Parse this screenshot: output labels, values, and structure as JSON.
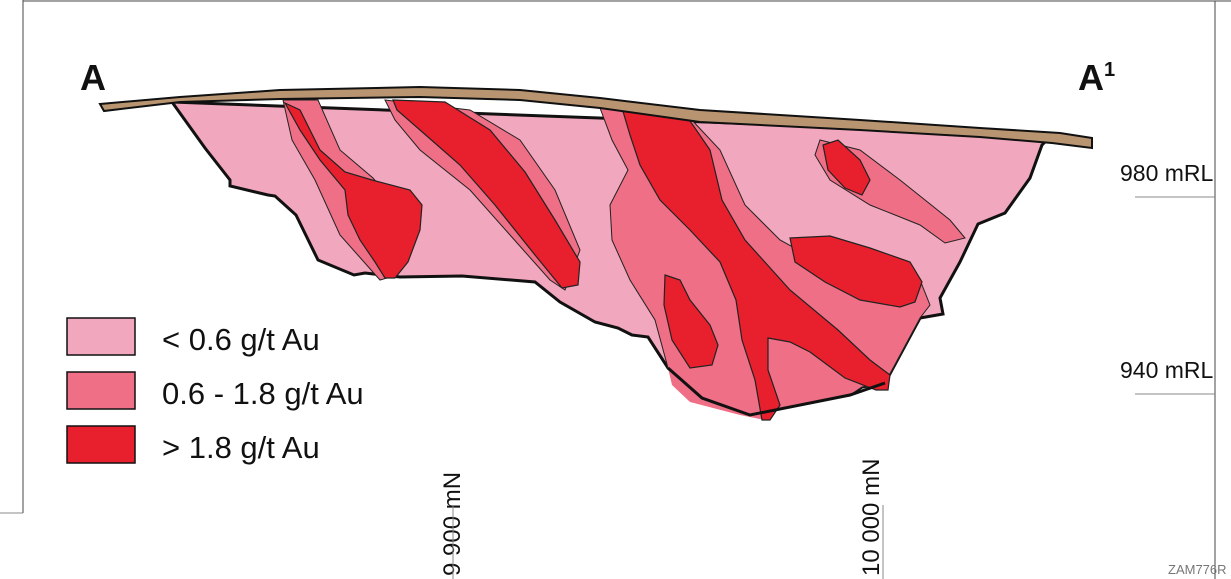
{
  "section": {
    "start_label": "A",
    "end_label": "A",
    "end_label_sup": "1"
  },
  "levels": [
    {
      "label": "980 mRL"
    },
    {
      "label": "940 mRL"
    }
  ],
  "northings": [
    {
      "label": "9 900 mN"
    },
    {
      "label": "10 000 mN"
    }
  ],
  "legend": [
    {
      "label": "< 0.6 g/t Au",
      "color": "#f1a7bd"
    },
    {
      "label": "0.6 - 1.8 g/t Au",
      "color": "#ee6f86"
    },
    {
      "label": "> 1.8 g/t Au",
      "color": "#e8202d"
    }
  ],
  "colors": {
    "overburden": "#b89570",
    "low_grade": "#f1a7bd",
    "mid_grade": "#ee6f86",
    "high_grade": "#e8202d",
    "outline": "#111111"
  },
  "figure_code": "ZAM776R"
}
